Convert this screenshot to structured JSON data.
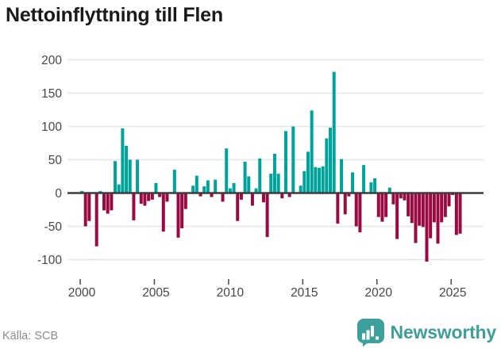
{
  "title": "Nettoinflyttning till Flen",
  "source": "Källa: SCB",
  "branding": {
    "name": "Newsworthy"
  },
  "colors": {
    "positive": "#00a39b",
    "negative": "#9a0a42",
    "grid": "#e8e8e8",
    "zero_line": "#3c3c3c",
    "axis_text": "#474747",
    "tick_mark": "#4a4a4a",
    "title_text": "#1a1a1a",
    "source_text": "#8b8b94",
    "brand": "#3e9f99"
  },
  "y_axis": {
    "tick_labels": [
      "200",
      "150",
      "100",
      "50",
      "0",
      "-50",
      "-100"
    ],
    "tick_values": [
      200,
      150,
      100,
      50,
      0,
      -50,
      -100
    ]
  },
  "x_axis": {
    "tick_labels": [
      "2000",
      "2005",
      "2010",
      "2015",
      "2020",
      "2025"
    ],
    "tick_years": [
      2000,
      2005,
      2010,
      2015,
      2020,
      2025
    ]
  },
  "chart_data": {
    "type": "bar",
    "title": "Nettoinflyttning till Flen",
    "xlabel": "",
    "ylabel": "",
    "x_start": "2000 Q1",
    "frequency": "quarterly",
    "ylim": [
      -115,
      200
    ],
    "grid": true,
    "legend": false,
    "positive_color": "#00a39b",
    "negative_color": "#9a0a42",
    "values": [
      3,
      -50,
      -42,
      0,
      -80,
      3,
      -26,
      -31,
      -26,
      48,
      13,
      97,
      71,
      50,
      -41,
      50,
      -16,
      -19,
      -12,
      -10,
      15,
      -6,
      -58,
      -13,
      0,
      35,
      -67,
      -53,
      -24,
      0,
      11,
      26,
      -5,
      10,
      19,
      -6,
      20,
      0,
      -13,
      67,
      7,
      15,
      -42,
      -10,
      47,
      25,
      -19,
      7,
      52,
      -14,
      -66,
      29,
      59,
      29,
      -8,
      93,
      -6,
      100,
      0,
      11,
      33,
      62,
      124,
      39,
      38,
      40,
      82,
      98,
      182,
      -46,
      51,
      -32,
      -5,
      31,
      -50,
      -59,
      42,
      0,
      16,
      22,
      -36,
      -43,
      -36,
      8,
      -17,
      -69,
      -8,
      -11,
      -35,
      -45,
      -75,
      -49,
      -51,
      -103,
      -68,
      -44,
      -76,
      -44,
      -36,
      -20,
      -3,
      -63,
      -61
    ]
  }
}
